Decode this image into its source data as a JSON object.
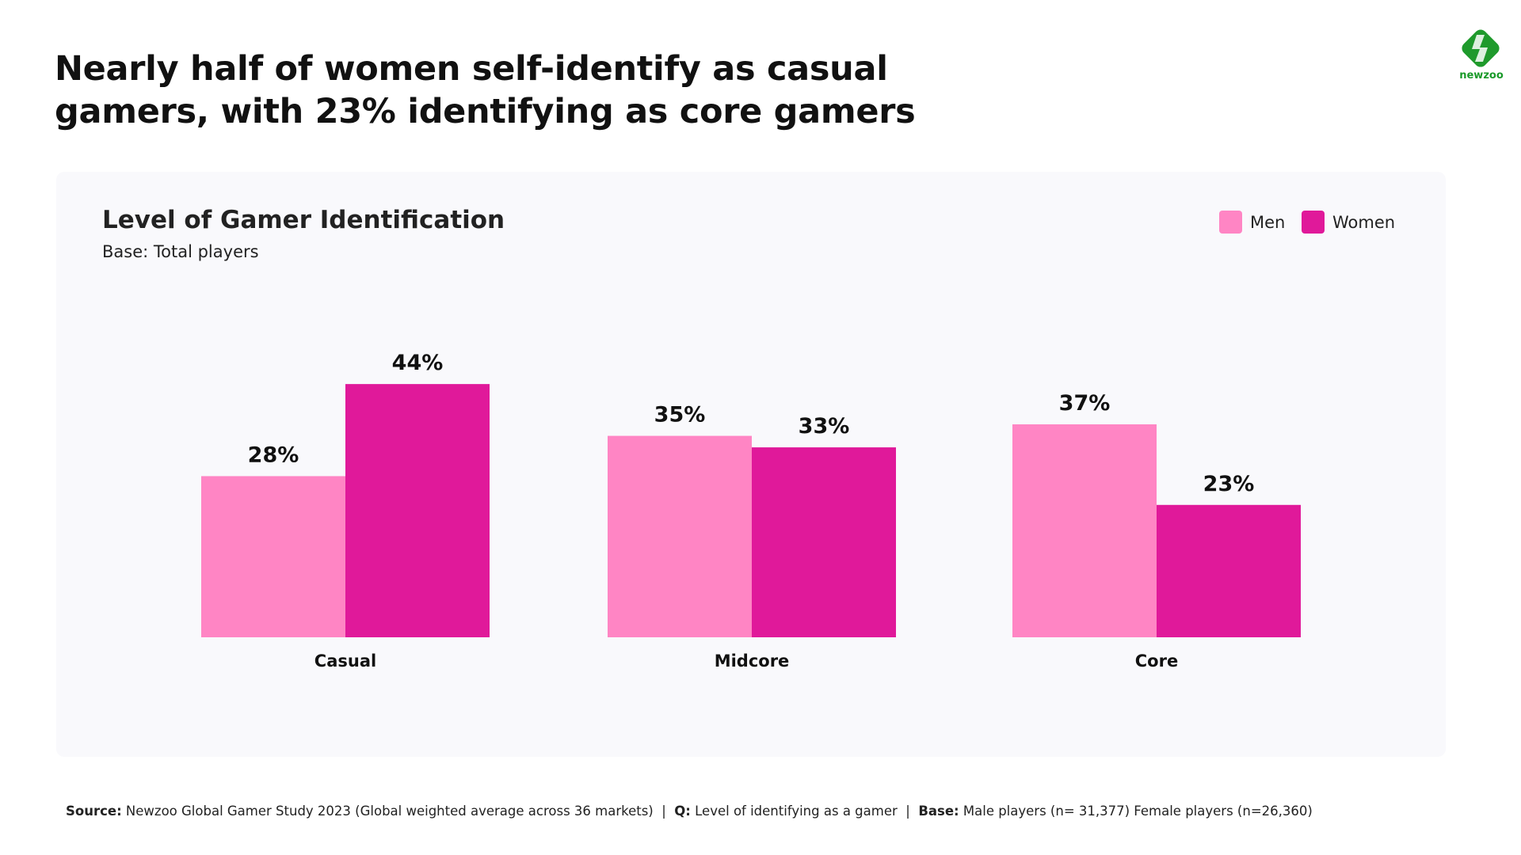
{
  "header": {
    "title_line1": "Nearly half of women self-identify as casual",
    "title_line2": "gamers, with 23% identifying as core gamers",
    "logo_text": "newzoo"
  },
  "chart_data": {
    "type": "bar",
    "title": "Level of Gamer Identification",
    "subtitle": "Base: Total players",
    "categories": [
      "Casual",
      "Midcore",
      "Core"
    ],
    "series": [
      {
        "name": "Men",
        "values": [
          28,
          35,
          37
        ],
        "labels": [
          "28%",
          "35%",
          "37%"
        ],
        "color": "#ff85c4"
      },
      {
        "name": "Women",
        "values": [
          44,
          33,
          23
        ],
        "labels": [
          "44%",
          "33%",
          "23%"
        ],
        "color": "#e0199a"
      }
    ],
    "unit": "%",
    "ylim": [
      0,
      60
    ],
    "grid": false,
    "legend_position": "top-right"
  },
  "footer": {
    "source_label": "Source:",
    "source_text": " Newzoo Global Gamer Study 2023 (Global weighted average across 36 markets)  |  ",
    "q_label": "Q:",
    "q_text": " Level of identifying as a gamer  |  ",
    "base_label": "Base:",
    "base_text": " Male players (n= 31,377) Female players (n=26,360)"
  },
  "colors": {
    "men": "#ff85c4",
    "women": "#e0199a",
    "brand": "#1a9a2a"
  }
}
